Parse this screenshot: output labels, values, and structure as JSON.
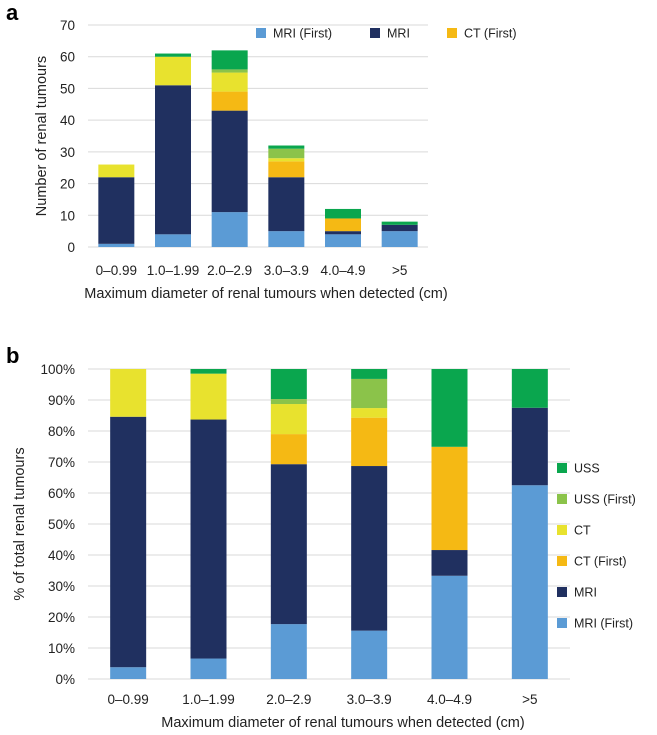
{
  "chart_data": [
    {
      "panel": "a",
      "type": "bar",
      "stacked": true,
      "categories": [
        "0–0.99",
        "1.0–1.99",
        "2.0–2.9",
        "3.0–3.9",
        "4.0–4.9",
        ">5"
      ],
      "ylabel": "Number of renal tumours",
      "xlabel": "Maximum diameter of renal tumours when detected (cm)",
      "ylim": [
        0,
        70
      ],
      "yticks": [
        "0",
        "10",
        "20",
        "30",
        "40",
        "50",
        "60",
        "70"
      ],
      "grid": true,
      "legend_position": "top",
      "legend": [
        "MRI (First)",
        "MRI",
        "CT (First)"
      ],
      "series": [
        {
          "name": "MRI (First)",
          "color": "#5B9BD5",
          "values": [
            1,
            4,
            11,
            5,
            4,
            5
          ]
        },
        {
          "name": "MRI",
          "color": "#203060",
          "values": [
            21,
            47,
            32,
            17,
            1,
            2
          ]
        },
        {
          "name": "CT (First)",
          "color": "#F5B914",
          "values": [
            0,
            0,
            6,
            5,
            4,
            0
          ]
        },
        {
          "name": "CT",
          "color": "#E8E22E",
          "values": [
            4,
            9,
            6,
            1,
            0,
            0
          ]
        },
        {
          "name": "USS (First)",
          "color": "#8BC34A",
          "values": [
            0,
            0,
            1,
            3,
            0,
            0
          ]
        },
        {
          "name": "USS",
          "color": "#0AA64E",
          "values": [
            0,
            1,
            6,
            1,
            3,
            1
          ]
        }
      ]
    },
    {
      "panel": "b",
      "type": "bar",
      "stacked": true,
      "categories": [
        "0–0.99",
        "1.0–1.99",
        "2.0–2.9",
        "3.0–3.9",
        "4.0–4.9",
        ">5"
      ],
      "ylabel": "% of total renal tumours",
      "xlabel": "Maximum diameter of renal tumours when detected (cm)",
      "ylim": [
        0,
        100
      ],
      "yticks": [
        "0%",
        "10%",
        "20%",
        "30%",
        "40%",
        "50%",
        "60%",
        "70%",
        "80%",
        "90%",
        "100%"
      ],
      "grid": true,
      "legend_position": "right",
      "legend": [
        "USS",
        "USS (First)",
        "CT",
        "CT (First)",
        "MRI",
        "MRI (First)"
      ],
      "series": [
        {
          "name": "MRI (First)",
          "color": "#5B9BD5",
          "values": [
            3.8,
            6.6,
            17.7,
            15.6,
            33.3,
            62.5
          ]
        },
        {
          "name": "MRI",
          "color": "#203060",
          "values": [
            80.8,
            77.1,
            51.6,
            53.1,
            8.3,
            25.0
          ]
        },
        {
          "name": "CT (First)",
          "color": "#F5B914",
          "values": [
            0,
            0,
            9.7,
            15.6,
            33.3,
            0
          ]
        },
        {
          "name": "CT",
          "color": "#E8E22E",
          "values": [
            15.4,
            14.8,
            9.7,
            3.1,
            0,
            0
          ]
        },
        {
          "name": "USS (First)",
          "color": "#8BC34A",
          "values": [
            0,
            0,
            1.6,
            9.4,
            0,
            0
          ]
        },
        {
          "name": "USS",
          "color": "#0AA64E",
          "values": [
            0,
            1.5,
            9.7,
            3.2,
            25.1,
            12.5
          ]
        }
      ]
    }
  ]
}
